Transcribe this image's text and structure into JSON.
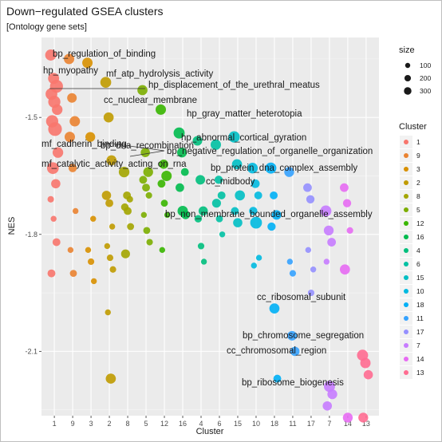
{
  "chart_data": {
    "type": "scatter",
    "title": "Down−regulated GSEA clusters",
    "subtitle": "[Ontology gene sets]",
    "xlabel": "Cluster",
    "ylabel": "NES",
    "categories": [
      "1",
      "9",
      "3",
      "2",
      "8",
      "5",
      "12",
      "16",
      "4",
      "6",
      "15",
      "10",
      "18",
      "11",
      "17",
      "7",
      "14",
      "13"
    ],
    "y_ticks": [
      -1.5,
      -1.8,
      -2.1
    ],
    "y_tick_labels": [
      "-1.5",
      "-1.8",
      "-2.1"
    ],
    "ylim": [
      -2.265,
      -1.295
    ],
    "grid": true,
    "size_legend": {
      "title": "size",
      "values": [
        100,
        200,
        300
      ],
      "labels": [
        "100",
        "200",
        "300"
      ]
    },
    "color_legend": {
      "title": "Cluster",
      "entries": [
        {
          "label": "1",
          "color": "#F8766D"
        },
        {
          "label": "9",
          "color": "#EA8331"
        },
        {
          "label": "3",
          "color": "#D89000"
        },
        {
          "label": "2",
          "color": "#C09B00"
        },
        {
          "label": "8",
          "color": "#A3A500"
        },
        {
          "label": "5",
          "color": "#7CAE00"
        },
        {
          "label": "12",
          "color": "#39B600"
        },
        {
          "label": "16",
          "color": "#00BB4E"
        },
        {
          "label": "4",
          "color": "#00BF7D"
        },
        {
          "label": "6",
          "color": "#00C1A3"
        },
        {
          "label": "15",
          "color": "#00BFC4"
        },
        {
          "label": "10",
          "color": "#00BAE0"
        },
        {
          "label": "18",
          "color": "#00B0F6"
        },
        {
          "label": "11",
          "color": "#35A2FF"
        },
        {
          "label": "17",
          "color": "#9590FF"
        },
        {
          "label": "7",
          "color": "#C77CFF"
        },
        {
          "label": "14",
          "color": "#E76BF3"
        },
        {
          "label": "13",
          "color": "#FF6C91"
        }
      ]
    },
    "series": [
      {
        "cluster": "1",
        "points": [
          [
            -1.34,
            170
          ],
          [
            -1.4,
            170
          ],
          [
            -1.42,
            260
          ],
          [
            -1.44,
            200
          ],
          [
            -1.46,
            220
          ],
          [
            -1.48,
            150
          ],
          [
            -1.51,
            220
          ],
          [
            -1.53,
            300
          ],
          [
            -1.59,
            150
          ],
          [
            -1.63,
            200
          ],
          [
            -1.67,
            100
          ],
          [
            -1.71,
            30
          ],
          [
            -1.76,
            20
          ],
          [
            -1.82,
            60
          ],
          [
            -1.9,
            60
          ]
        ]
      },
      {
        "cluster": "9",
        "points": [
          [
            -1.35,
            140
          ],
          [
            -1.45,
            110
          ],
          [
            -1.51,
            140
          ],
          [
            -1.55,
            140
          ],
          [
            -1.63,
            70
          ],
          [
            -1.74,
            20
          ],
          [
            -1.84,
            20
          ],
          [
            -1.9,
            40
          ]
        ]
      },
      {
        "cluster": "3",
        "points": [
          [
            -1.36,
            140
          ],
          [
            -1.55,
            120
          ],
          [
            -1.76,
            20
          ],
          [
            -1.84,
            20
          ],
          [
            -1.87,
            30
          ],
          [
            -1.92,
            20
          ]
        ]
      },
      {
        "cluster": "2",
        "points": [
          [
            -1.41,
            160
          ],
          [
            -1.5,
            130
          ],
          [
            -1.61,
            130
          ],
          [
            -1.7,
            100
          ],
          [
            -1.72,
            60
          ],
          [
            -1.78,
            20
          ],
          [
            -1.83,
            20
          ],
          [
            -1.86,
            30
          ],
          [
            -1.89,
            30
          ],
          [
            -2.0,
            20
          ],
          [
            -2.17,
            130
          ]
        ]
      },
      {
        "cluster": "8",
        "points": [
          [
            -1.64,
            150
          ],
          [
            -1.7,
            60
          ],
          [
            -1.71,
            30
          ],
          [
            -1.73,
            50
          ],
          [
            -1.74,
            60
          ],
          [
            -1.78,
            40
          ],
          [
            -1.85,
            90
          ]
        ]
      },
      {
        "cluster": "5",
        "points": [
          [
            -1.43,
            130
          ],
          [
            -1.59,
            100
          ],
          [
            -1.64,
            120
          ],
          [
            -1.66,
            60
          ],
          [
            -1.68,
            60
          ],
          [
            -1.7,
            30
          ],
          [
            -1.75,
            20
          ],
          [
            -1.79,
            40
          ],
          [
            -1.82,
            30
          ]
        ]
      },
      {
        "cluster": "12",
        "points": [
          [
            -1.48,
            140
          ],
          [
            -1.62,
            100
          ],
          [
            -1.65,
            140
          ],
          [
            -1.67,
            60
          ],
          [
            -1.72,
            40
          ],
          [
            -1.75,
            20
          ],
          [
            -1.84,
            20
          ]
        ]
      },
      {
        "cluster": "16",
        "points": [
          [
            -1.54,
            170
          ],
          [
            -1.59,
            120
          ],
          [
            -1.64,
            60
          ],
          [
            -1.68,
            80
          ],
          [
            -1.74,
            140
          ],
          [
            -1.75,
            80
          ]
        ]
      },
      {
        "cluster": "4",
        "points": [
          [
            -1.56,
            110
          ],
          [
            -1.66,
            110
          ],
          [
            -1.74,
            100
          ],
          [
            -1.76,
            50
          ],
          [
            -1.83,
            30
          ],
          [
            -1.87,
            20
          ]
        ]
      },
      {
        "cluster": "6",
        "points": [
          [
            -1.57,
            140
          ],
          [
            -1.66,
            70
          ],
          [
            -1.7,
            60
          ],
          [
            -1.72,
            90
          ],
          [
            -1.76,
            40
          ],
          [
            -1.8,
            20
          ]
        ]
      },
      {
        "cluster": "15",
        "points": [
          [
            -1.55,
            180
          ],
          [
            -1.62,
            130
          ],
          [
            -1.7,
            130
          ],
          [
            -1.74,
            60
          ],
          [
            -1.77,
            100
          ]
        ]
      },
      {
        "cluster": "10",
        "points": [
          [
            -1.63,
            150
          ],
          [
            -1.67,
            80
          ],
          [
            -1.7,
            60
          ],
          [
            -1.74,
            70
          ],
          [
            -1.77,
            200
          ],
          [
            -1.86,
            20
          ],
          [
            -1.88,
            20
          ]
        ]
      },
      {
        "cluster": "18",
        "points": [
          [
            -1.63,
            170
          ],
          [
            -1.7,
            60
          ],
          [
            -1.75,
            110
          ],
          [
            -1.78,
            70
          ],
          [
            -1.99,
            130
          ],
          [
            -2.17,
            60
          ]
        ]
      },
      {
        "cluster": "11",
        "points": [
          [
            -1.64,
            120
          ],
          [
            -2.06,
            110
          ],
          [
            -2.1,
            100
          ],
          [
            -1.87,
            20
          ],
          [
            -1.9,
            30
          ]
        ]
      },
      {
        "cluster": "17",
        "points": [
          [
            -1.68,
            80
          ],
          [
            -1.71,
            70
          ],
          [
            -1.89,
            20
          ],
          [
            -1.84,
            20
          ],
          [
            -1.95,
            30
          ]
        ]
      },
      {
        "cluster": "7",
        "points": [
          [
            -1.74,
            170
          ],
          [
            -1.79,
            120
          ],
          [
            -1.82,
            80
          ],
          [
            -1.87,
            20
          ],
          [
            -2.19,
            170
          ],
          [
            -2.21,
            120
          ],
          [
            -2.24,
            100
          ]
        ]
      },
      {
        "cluster": "14",
        "points": [
          [
            -1.68,
            80
          ],
          [
            -1.72,
            70
          ],
          [
            -1.79,
            30
          ],
          [
            -1.89,
            130
          ],
          [
            -2.27,
            120
          ]
        ]
      },
      {
        "cluster": "13",
        "points": [
          [
            -2.11,
            170
          ],
          [
            -2.13,
            140
          ],
          [
            -2.16,
            100
          ],
          [
            -2.27,
            120
          ]
        ]
      }
    ],
    "annotations": [
      {
        "text": "bp_regulation_of_binding",
        "cluster": "1",
        "nes": -1.34
      },
      {
        "text": "hp_myopathy",
        "cluster": "1",
        "nes": -1.4
      },
      {
        "text": "mf_atp_hydrolysis_activity",
        "cluster": "2",
        "nes": -1.41
      },
      {
        "text": "hp_displacement_of_the_urethral_meatus",
        "cluster": "5",
        "nes": -1.43
      },
      {
        "text": "cc_nuclear_membrane",
        "cluster": "12",
        "nes": -1.48
      },
      {
        "text": "hp_gray_matter_heterotopia",
        "cluster": "16",
        "nes": -1.54
      },
      {
        "text": "hp_abnormal_cortical_gyration",
        "cluster": "15",
        "nes": -1.55
      },
      {
        "text": "mf_cadherin_binding",
        "cluster": "1",
        "nes": -1.59
      },
      {
        "text": "bp_dna_recombination",
        "cluster": "8",
        "nes": -1.64
      },
      {
        "text": "bp_negative_regulation_of_organelle_organization",
        "cluster": "12",
        "nes": -1.62
      },
      {
        "text": "mf_catalytic_activity_acting_on_rna",
        "cluster": "1",
        "nes": -1.63
      },
      {
        "text": "bp_protein_dna_complex_assembly",
        "cluster": "6",
        "nes": -1.66
      },
      {
        "text": "cc_midbody",
        "cluster": "6",
        "nes": -1.7
      },
      {
        "text": "bp_non_membrane_bounded_organelle_assembly",
        "cluster": "10",
        "nes": -1.77
      },
      {
        "text": "cc_ribosomal_subunit",
        "cluster": "11",
        "nes": -2.06
      },
      {
        "text": "bp_chromosome_segregation",
        "cluster": "7",
        "nes": -2.19
      },
      {
        "text": "cc_chromosomal_region",
        "cluster": "7",
        "nes": -2.21
      },
      {
        "text": "bp_ribosome_biogenesis",
        "cluster": "13",
        "nes": -2.27
      }
    ]
  }
}
